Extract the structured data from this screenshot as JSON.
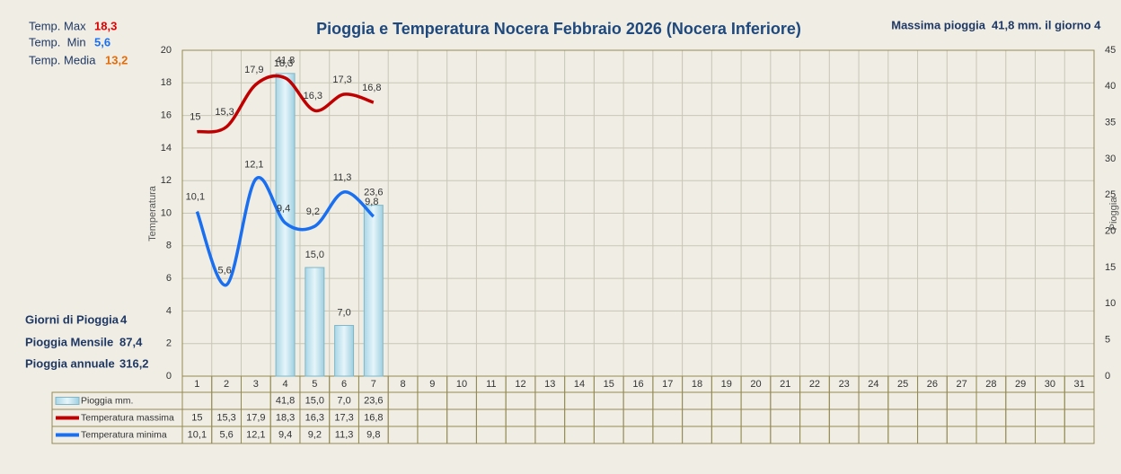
{
  "chart_data": {
    "type": "combo",
    "title": "Pioggia e Temperatura Nocera Febbraio 2026 (Nocera Inferiore)",
    "categories": [
      "1",
      "2",
      "3",
      "4",
      "5",
      "6",
      "7",
      "8",
      "9",
      "10",
      "11",
      "12",
      "13",
      "14",
      "15",
      "16",
      "17",
      "18",
      "19",
      "20",
      "21",
      "22",
      "23",
      "24",
      "25",
      "26",
      "27",
      "28",
      "29",
      "30",
      "31"
    ],
    "series": [
      {
        "name": "Pioggia mm.",
        "type": "bar",
        "axis": "y2",
        "color": "#bfe4f0",
        "values": [
          null,
          null,
          null,
          41.8,
          15.0,
          7.0,
          23.6,
          null,
          null,
          null,
          null,
          null,
          null,
          null,
          null,
          null,
          null,
          null,
          null,
          null,
          null,
          null,
          null,
          null,
          null,
          null,
          null,
          null,
          null,
          null,
          null
        ],
        "value_labels": [
          null,
          null,
          null,
          "41,8",
          "15,0",
          "7,0",
          "23,6",
          null,
          null,
          null,
          null,
          null,
          null,
          null,
          null,
          null,
          null,
          null,
          null,
          null,
          null,
          null,
          null,
          null,
          null,
          null,
          null,
          null,
          null,
          null,
          null
        ]
      },
      {
        "name": "Temperatura massima",
        "type": "line",
        "color": "#c00000",
        "values": [
          15,
          15.3,
          17.9,
          18.3,
          16.3,
          17.3,
          16.8,
          null,
          null,
          null,
          null,
          null,
          null,
          null,
          null,
          null,
          null,
          null,
          null,
          null,
          null,
          null,
          null,
          null,
          null,
          null,
          null,
          null,
          null,
          null,
          null
        ],
        "value_labels": [
          "15",
          "15,3",
          "17,9",
          "18,3",
          "16,3",
          "17,3",
          "16,8",
          null,
          null,
          null,
          null,
          null,
          null,
          null,
          null,
          null,
          null,
          null,
          null,
          null,
          null,
          null,
          null,
          null,
          null,
          null,
          null,
          null,
          null,
          null,
          null
        ]
      },
      {
        "name": "Temperatura minima",
        "type": "line",
        "color": "#1a6ff0",
        "values": [
          10.1,
          5.6,
          12.1,
          9.4,
          9.2,
          11.3,
          9.8,
          null,
          null,
          null,
          null,
          null,
          null,
          null,
          null,
          null,
          null,
          null,
          null,
          null,
          null,
          null,
          null,
          null,
          null,
          null,
          null,
          null,
          null,
          null,
          null
        ],
        "value_labels": [
          "10,1",
          "5,6",
          "12,1",
          "9,4",
          "9,2",
          "11,3",
          "9,8",
          null,
          null,
          null,
          null,
          null,
          null,
          null,
          null,
          null,
          null,
          null,
          null,
          null,
          null,
          null,
          null,
          null,
          null,
          null,
          null,
          null,
          null,
          null,
          null
        ]
      }
    ],
    "ylim": [
      0,
      20
    ],
    "yticks": [
      0,
      2,
      4,
      6,
      8,
      10,
      12,
      14,
      16,
      18,
      20
    ],
    "y2lim": [
      0,
      45
    ],
    "y2ticks": [
      0,
      5,
      10,
      15,
      20,
      25,
      30,
      35,
      40,
      45
    ],
    "ylabel": "Temperatura",
    "y2label": "Pioggia",
    "grid": true
  },
  "stats": {
    "temp_max": {
      "label": "Temp. Max",
      "value": "18,3"
    },
    "temp_min": {
      "label": "Temp.  Min",
      "value": "5,6"
    },
    "temp_media": {
      "label": "Temp. Media",
      "value": "13,2"
    },
    "rain_days": {
      "label": "Giorni di Pioggia",
      "value": "4"
    },
    "rain_month": {
      "label": "Pioggia Mensile",
      "value": "87,4"
    },
    "rain_year": {
      "label": "Pioggia annuale",
      "value": "316,2"
    },
    "rain_max": {
      "label": "Massima pioggia",
      "value": "41,8 mm. il giorno 4"
    }
  }
}
